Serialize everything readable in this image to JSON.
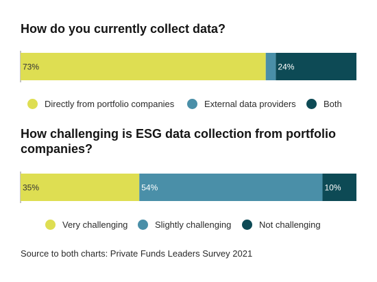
{
  "charts": [
    {
      "title": "How do you currently collect data?",
      "legend": [
        {
          "label": "Directly from portfolio companies",
          "color": "#dede52"
        },
        {
          "label": "External data providers",
          "color": "#4a8fa8"
        },
        {
          "label": "Both",
          "color": "#0d4a55"
        }
      ]
    },
    {
      "title": "How challenging is ESG data collection from portfolio companies?",
      "legend": [
        {
          "label": "Very challenging",
          "color": "#dede52"
        },
        {
          "label": "Slightly challenging",
          "color": "#4a8fa8"
        },
        {
          "label": "Not challenging",
          "color": "#0d4a55"
        }
      ]
    }
  ],
  "source": "Source to both charts: Private Funds Leaders Survey 2021",
  "chart_data": [
    {
      "type": "bar",
      "orientation": "horizontal-stacked",
      "title": "How do you currently collect data?",
      "categories": [
        "Directly from portfolio companies",
        "External data providers",
        "Both"
      ],
      "values": [
        73,
        3,
        24
      ],
      "data_labels": [
        "73%",
        "",
        "24%"
      ],
      "colors": [
        "#dede52",
        "#4a8fa8",
        "#0d4a55"
      ],
      "legend_position": "bottom"
    },
    {
      "type": "bar",
      "orientation": "horizontal-stacked",
      "title": "How challenging is ESG data collection from portfolio companies?",
      "categories": [
        "Very challenging",
        "Slightly challenging",
        "Not challenging"
      ],
      "values": [
        35,
        54,
        10
      ],
      "data_labels": [
        "35%",
        "54%",
        "10%"
      ],
      "colors": [
        "#dede52",
        "#4a8fa8",
        "#0d4a55"
      ],
      "legend_position": "bottom"
    }
  ]
}
